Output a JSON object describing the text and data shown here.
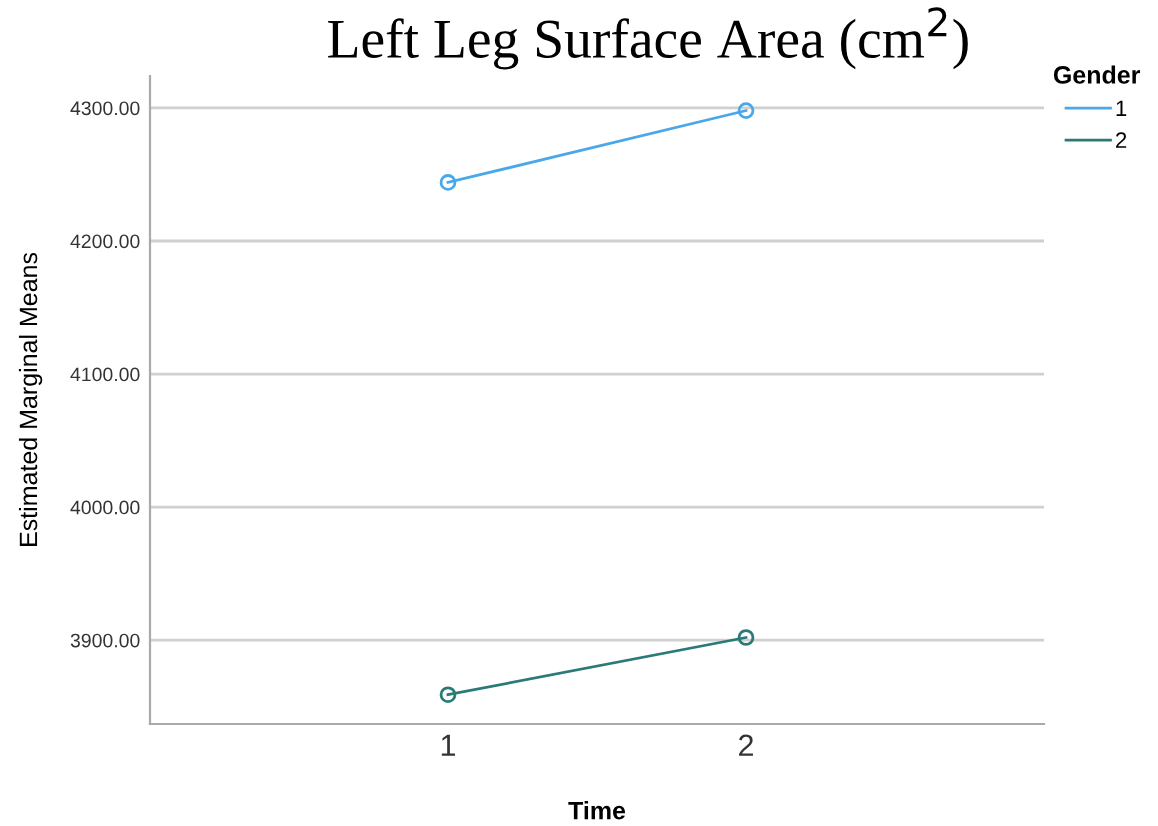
{
  "chart_data": {
    "type": "line",
    "title": "Left Leg Surface Area (cm$^{2}$)",
    "xlabel": "Time",
    "ylabel": "Estimated Marginal Means",
    "legend_title": "Gender",
    "categories": [
      "1",
      "2"
    ],
    "series": [
      {
        "name": "1",
        "color": "#4aa8e8",
        "values": [
          4244,
          4298
        ]
      },
      {
        "name": "2",
        "color": "#2a7a78",
        "values": [
          3859,
          3902
        ]
      }
    ],
    "ylim": [
      3837,
      4324
    ],
    "yticks": [
      {
        "value": 3900,
        "label": "3900.00"
      },
      {
        "value": 4000,
        "label": "4000.00"
      },
      {
        "value": 4100,
        "label": "4100.00"
      },
      {
        "value": 4200,
        "label": "4200.00"
      },
      {
        "value": 4300,
        "label": "4300.00"
      }
    ],
    "grid": "y",
    "legend": "top right",
    "marker": "circle",
    "line_style": "solid"
  }
}
